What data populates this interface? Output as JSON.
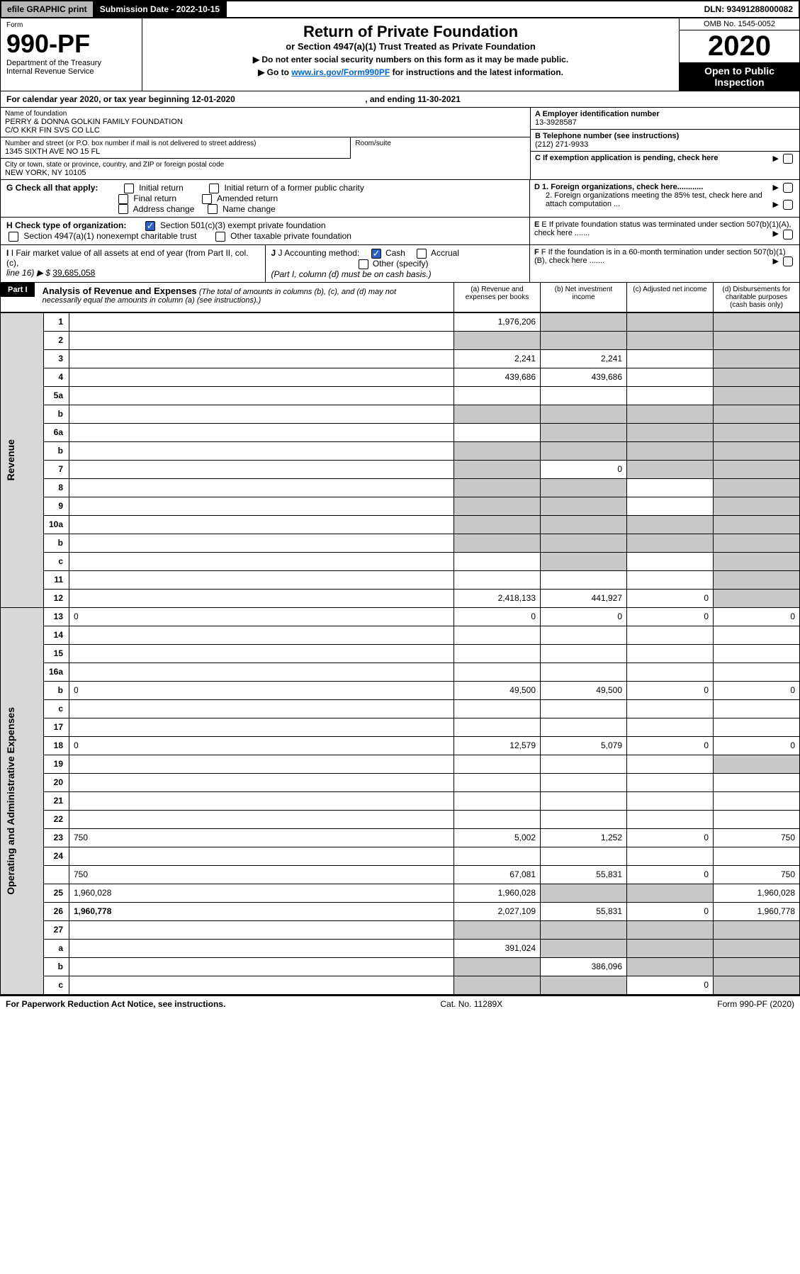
{
  "top_bar": {
    "efile": "efile GRAPHIC print",
    "sub_date_label": "Submission Date - 2022-10-15",
    "dln": "DLN: 93491288000082"
  },
  "header": {
    "form_label": "Form",
    "form_num": "990-PF",
    "dept": "Department of the Treasury",
    "irs": "Internal Revenue Service",
    "main_title": "Return of Private Foundation",
    "sub_title": "or Section 4947(a)(1) Trust Treated as Private Foundation",
    "instr1": "▶ Do not enter social security numbers on this form as it may be made public.",
    "instr2_pre": "▶ Go to ",
    "instr2_link": "www.irs.gov/Form990PF",
    "instr2_post": " for instructions and the latest information.",
    "omb": "OMB No. 1545-0052",
    "year": "2020",
    "inspect": "Open to Public Inspection"
  },
  "cal_year": {
    "pre": "For calendar year 2020, or tax year beginning ",
    "begin": "12-01-2020",
    "mid": " , and ending ",
    "end": "11-30-2021"
  },
  "info": {
    "name_label": "Name of foundation",
    "name1": "PERRY & DONNA GOLKIN FAMILY FOUNDATION",
    "name2": "C/O KKR FIN SVS CO LLC",
    "addr_label": "Number and street (or P.O. box number if mail is not delivered to street address)",
    "addr": "1345 SIXTH AVE NO 15 FL",
    "room_label": "Room/suite",
    "city_label": "City or town, state or province, country, and ZIP or foreign postal code",
    "city": "NEW YORK, NY  10105",
    "a_label": "A Employer identification number",
    "a_val": "13-3928587",
    "b_label": "B Telephone number (see instructions)",
    "b_val": "(212) 271-9933",
    "c_label": "C If exemption application is pending, check here",
    "d1_label": "D 1. Foreign organizations, check here............",
    "d2_label": "2. Foreign organizations meeting the 85% test, check here and attach computation ...",
    "e_label": "E  If private foundation status was terminated under section 507(b)(1)(A), check here .......",
    "f_label": "F  If the foundation is in a 60-month termination under section 507(b)(1)(B), check here .......",
    "g_label": "G Check all that apply:",
    "g_opts": [
      "Initial return",
      "Initial return of a former public charity",
      "Final return",
      "Amended return",
      "Address change",
      "Name change"
    ],
    "h_label": "H Check type of organization:",
    "h_opts": [
      "Section 501(c)(3) exempt private foundation",
      "Section 4947(a)(1) nonexempt charitable trust",
      "Other taxable private foundation"
    ],
    "i_label": "I Fair market value of all assets at end of year (from Part II, col. (c),",
    "i_line": "line 16) ▶ $",
    "i_val": "39,685,058",
    "j_label": "J Accounting method:",
    "j_cash": "Cash",
    "j_accrual": "Accrual",
    "j_other": "Other (specify)",
    "j_note": "(Part I, column (d) must be on cash basis.)"
  },
  "part1": {
    "label": "Part I",
    "title": "Analysis of Revenue and Expenses",
    "note": " (The total of amounts in columns (b), (c), and (d) may not necessarily equal the amounts in column (a) (see instructions).)",
    "col_a": "(a)  Revenue and expenses per books",
    "col_b": "(b)  Net investment income",
    "col_c": "(c)  Adjusted net income",
    "col_d": "(d)  Disbursements for charitable purposes (cash basis only)"
  },
  "side_labels": {
    "revenue": "Revenue",
    "expenses": "Operating and Administrative Expenses"
  },
  "rows": [
    {
      "n": "1",
      "d": "",
      "a": "1,976,206",
      "b": "",
      "c": "",
      "greyB": true,
      "greyC": true,
      "greyD": true
    },
    {
      "n": "2",
      "d": "",
      "a": "",
      "b": "",
      "c": "",
      "greyA": true,
      "greyB": true,
      "greyC": true,
      "greyD": true,
      "bold_not": true
    },
    {
      "n": "3",
      "d": "",
      "a": "2,241",
      "b": "2,241",
      "c": "",
      "greyD": true
    },
    {
      "n": "4",
      "d": "",
      "a": "439,686",
      "b": "439,686",
      "c": "",
      "greyD": true
    },
    {
      "n": "5a",
      "d": "",
      "a": "",
      "b": "",
      "c": "",
      "greyD": true
    },
    {
      "n": "b",
      "d": "",
      "a": "",
      "b": "",
      "c": "",
      "greyA": true,
      "greyB": true,
      "greyC": true,
      "greyD": true,
      "inline": true
    },
    {
      "n": "6a",
      "d": "",
      "a": "",
      "b": "",
      "c": "",
      "greyB": true,
      "greyC": true,
      "greyD": true
    },
    {
      "n": "b",
      "d": "",
      "a": "",
      "b": "",
      "c": "",
      "greyA": true,
      "greyB": true,
      "greyC": true,
      "greyD": true,
      "inline": true
    },
    {
      "n": "7",
      "d": "",
      "a": "",
      "b": "0",
      "c": "",
      "greyA": true,
      "greyC": true,
      "greyD": true
    },
    {
      "n": "8",
      "d": "",
      "a": "",
      "b": "",
      "c": "",
      "greyA": true,
      "greyB": true,
      "greyD": true
    },
    {
      "n": "9",
      "d": "",
      "a": "",
      "b": "",
      "c": "",
      "greyA": true,
      "greyB": true,
      "greyD": true
    },
    {
      "n": "10a",
      "d": "",
      "a": "",
      "b": "",
      "c": "",
      "greyA": true,
      "greyB": true,
      "greyC": true,
      "greyD": true,
      "inline": true
    },
    {
      "n": "b",
      "d": "",
      "a": "",
      "b": "",
      "c": "",
      "greyA": true,
      "greyB": true,
      "greyC": true,
      "greyD": true,
      "inline": true
    },
    {
      "n": "c",
      "d": "",
      "a": "",
      "b": "",
      "c": "",
      "greyB": true,
      "greyD": true
    },
    {
      "n": "11",
      "d": "",
      "a": "",
      "b": "",
      "c": "",
      "greyD": true
    },
    {
      "n": "12",
      "d": "",
      "a": "2,418,133",
      "b": "441,927",
      "c": "0",
      "bold": true,
      "greyD": true
    },
    {
      "n": "13",
      "d": "0",
      "a": "0",
      "b": "0",
      "c": "0"
    },
    {
      "n": "14",
      "d": "",
      "a": "",
      "b": "",
      "c": ""
    },
    {
      "n": "15",
      "d": "",
      "a": "",
      "b": "",
      "c": ""
    },
    {
      "n": "16a",
      "d": "",
      "a": "",
      "b": "",
      "c": ""
    },
    {
      "n": "b",
      "d": "0",
      "a": "49,500",
      "b": "49,500",
      "c": "0"
    },
    {
      "n": "c",
      "d": "",
      "a": "",
      "b": "",
      "c": ""
    },
    {
      "n": "17",
      "d": "",
      "a": "",
      "b": "",
      "c": ""
    },
    {
      "n": "18",
      "d": "0",
      "a": "12,579",
      "b": "5,079",
      "c": "0"
    },
    {
      "n": "19",
      "d": "",
      "a": "",
      "b": "",
      "c": "",
      "greyD": true
    },
    {
      "n": "20",
      "d": "",
      "a": "",
      "b": "",
      "c": ""
    },
    {
      "n": "21",
      "d": "",
      "a": "",
      "b": "",
      "c": ""
    },
    {
      "n": "22",
      "d": "",
      "a": "",
      "b": "",
      "c": ""
    },
    {
      "n": "23",
      "d": "750",
      "a": "5,002",
      "b": "1,252",
      "c": "0"
    },
    {
      "n": "24",
      "d": "",
      "a": "",
      "b": "",
      "c": "",
      "bold": true,
      "noVals": true
    },
    {
      "n": "",
      "d": "750",
      "a": "67,081",
      "b": "55,831",
      "c": "0"
    },
    {
      "n": "25",
      "d": "1,960,028",
      "a": "1,960,028",
      "b": "",
      "c": "",
      "greyB": true,
      "greyC": true
    },
    {
      "n": "26",
      "d": "1,960,778",
      "a": "2,027,109",
      "b": "55,831",
      "c": "0",
      "bold": true
    },
    {
      "n": "27",
      "d": "",
      "a": "",
      "b": "",
      "c": "",
      "greyA": true,
      "greyB": true,
      "greyC": true,
      "greyD": true
    },
    {
      "n": "a",
      "d": "",
      "a": "391,024",
      "b": "",
      "c": "",
      "bold": true,
      "greyB": true,
      "greyC": true,
      "greyD": true
    },
    {
      "n": "b",
      "d": "",
      "a": "",
      "b": "386,096",
      "c": "",
      "bold": true,
      "greyA": true,
      "greyC": true,
      "greyD": true
    },
    {
      "n": "c",
      "d": "",
      "a": "",
      "b": "",
      "c": "0",
      "bold": true,
      "greyA": true,
      "greyB": true,
      "greyD": true
    }
  ],
  "footer": {
    "left": "For Paperwork Reduction Act Notice, see instructions.",
    "mid": "Cat. No. 11289X",
    "right": "Form 990-PF (2020)"
  },
  "colors": {
    "grey_bg": "#c8c8c8",
    "side_bg": "#d8d8d8",
    "link": "#0066cc",
    "check_blue": "#2962c4"
  }
}
